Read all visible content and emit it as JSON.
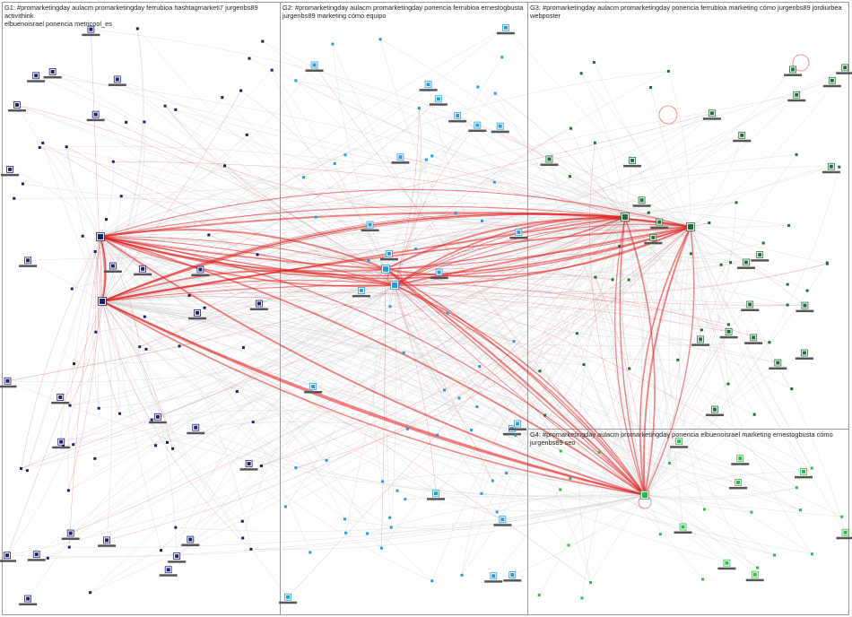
{
  "groups": [
    {
      "id": "G1",
      "title_line1": "G1: #promarketingday aulacm promarketingday ferrubioa hashtagmarketi7 jurgenbs89 activithink",
      "title_line2": "elbuenoisrael ponencia metricool_es",
      "node_color": "#1b1f6b"
    },
    {
      "id": "G2",
      "title_line1": "G2: #promarketingday aulacm promarketingday ponencia ferrubioa ernestogbusta",
      "title_line2": "jurgenbs89 marketing cómo equipo",
      "node_color": "#2a9bd8"
    },
    {
      "id": "G3",
      "title_line1": "G3: #promarketingday aulacm promarketingday ponencia ferrubioa marketing cómo jurgenbs89 jordiurbea webposter",
      "title_line2": "",
      "node_color": "#1f6b35"
    },
    {
      "id": "G4",
      "title_line1": "G4: #promarketingday aulacm promarketingday ponencia elbuenoisrael marketing ernestogbusta cómo jurgenbs89 seo",
      "title_line2": "",
      "node_color": "#2fb84c"
    }
  ],
  "colors": {
    "edge_light": "#c9c9cc",
    "edge_red": "#e02020",
    "border": "#9a9a9a"
  }
}
